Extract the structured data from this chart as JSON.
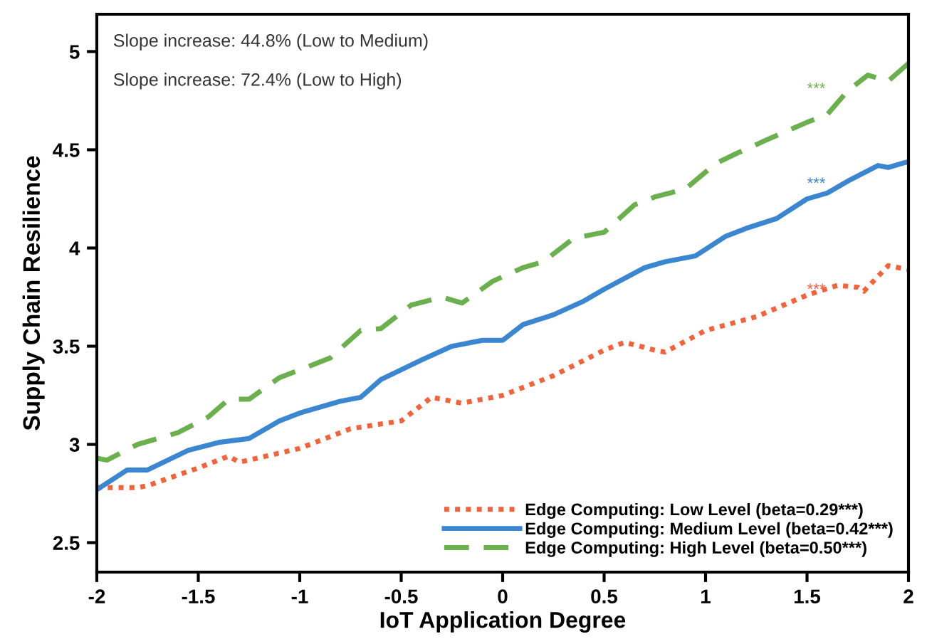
{
  "chart_data": {
    "type": "line",
    "xlabel": "IoT Application Degree",
    "ylabel": "Supply Chain Resilience",
    "xlim": [
      -2,
      2
    ],
    "ylim": [
      2.35,
      5.19
    ],
    "xticks": [
      -2,
      -1.5,
      -1,
      -0.5,
      0,
      0.5,
      1,
      1.5,
      2
    ],
    "yticks": [
      2.5,
      3,
      3.5,
      4,
      4.5,
      5
    ],
    "grid": false,
    "legend": "bottom right",
    "series": [
      {
        "name": "Edge Computing: Low Level (beta=0.29***)",
        "color": "#f4623a",
        "line_style": "dotted",
        "x": [
          -2,
          -1.8,
          -1.75,
          -1.5,
          -1.35,
          -1.3,
          -1.25,
          -1,
          -0.75,
          -0.5,
          -0.35,
          -0.25,
          -0.2,
          0,
          0.25,
          0.5,
          0.6,
          0.75,
          0.8,
          1,
          1.25,
          1.5,
          1.65,
          1.75,
          1.78,
          1.9,
          2
        ],
        "values": [
          2.78,
          2.78,
          2.79,
          2.88,
          2.94,
          2.91,
          2.92,
          2.98,
          3.08,
          3.12,
          3.24,
          3.22,
          3.21,
          3.25,
          3.35,
          3.48,
          3.52,
          3.48,
          3.47,
          3.58,
          3.65,
          3.76,
          3.81,
          3.8,
          3.78,
          3.91,
          3.89
        ]
      },
      {
        "name": "Edge Computing: Medium Level (beta=0.42***)",
        "color": "#3a86d0",
        "line_style": "solid",
        "x": [
          -2,
          -1.85,
          -1.75,
          -1.65,
          -1.55,
          -1.4,
          -1.25,
          -1.2,
          -1.1,
          -1,
          -0.8,
          -0.7,
          -0.6,
          -0.4,
          -0.25,
          -0.1,
          0,
          0.1,
          0.25,
          0.4,
          0.5,
          0.7,
          0.8,
          0.95,
          1.1,
          1.2,
          1.35,
          1.5,
          1.6,
          1.7,
          1.85,
          1.9,
          2
        ],
        "values": [
          2.77,
          2.87,
          2.87,
          2.92,
          2.97,
          3.01,
          3.03,
          3.06,
          3.12,
          3.16,
          3.22,
          3.24,
          3.33,
          3.43,
          3.5,
          3.53,
          3.53,
          3.61,
          3.66,
          3.73,
          3.79,
          3.9,
          3.93,
          3.96,
          4.06,
          4.1,
          4.15,
          4.25,
          4.28,
          4.34,
          4.42,
          4.41,
          4.44
        ]
      },
      {
        "name": "Edge Computing: High Level (beta=0.50***)",
        "color": "#6ab04c",
        "line_style": "dashed",
        "x": [
          -2,
          -1.95,
          -1.8,
          -1.6,
          -1.45,
          -1.35,
          -1.25,
          -1.1,
          -0.95,
          -0.85,
          -0.7,
          -0.6,
          -0.45,
          -0.3,
          -0.2,
          -0.05,
          0.1,
          0.2,
          0.35,
          0.5,
          0.65,
          0.75,
          0.9,
          1.05,
          1.15,
          1.3,
          1.5,
          1.6,
          1.7,
          1.8,
          1.9,
          2
        ],
        "values": [
          2.93,
          2.92,
          3.0,
          3.06,
          3.14,
          3.23,
          3.23,
          3.34,
          3.4,
          3.44,
          3.58,
          3.59,
          3.71,
          3.75,
          3.72,
          3.83,
          3.9,
          3.93,
          4.05,
          4.08,
          4.22,
          4.26,
          4.3,
          4.43,
          4.48,
          4.55,
          4.64,
          4.68,
          4.8,
          4.88,
          4.85,
          4.94
        ]
      }
    ],
    "annotations": [
      "Slope increase: 44.8% (Low to Medium)",
      "Slope increase: 72.4% (Low to High)",
      "***",
      "***",
      "***"
    ]
  }
}
